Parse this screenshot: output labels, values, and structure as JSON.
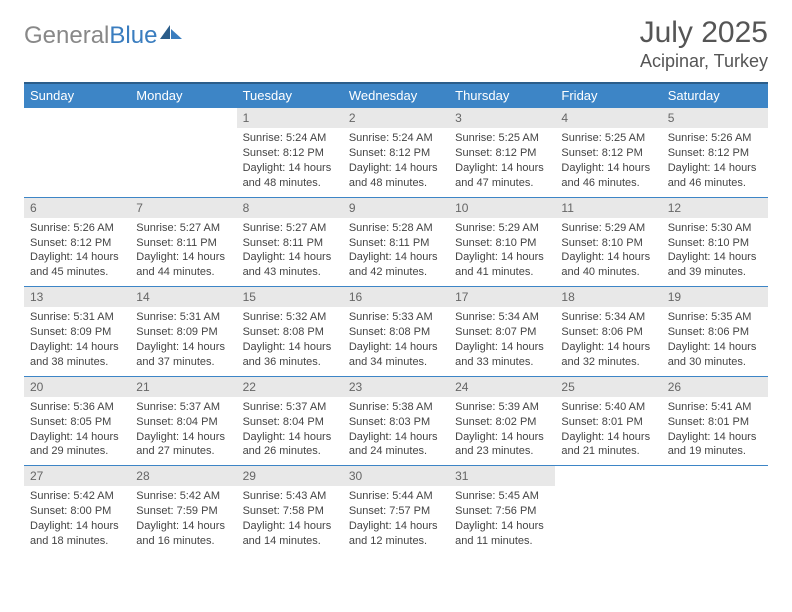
{
  "logo": {
    "part1": "General",
    "part2": "Blue"
  },
  "title": "July 2025",
  "location": "Acipinar, Turkey",
  "header_bg": "#3d85c6",
  "header_text": "#ffffff",
  "daynum_bg": "#e8e8e8",
  "border_color": "#3d85c6",
  "days": [
    "Sunday",
    "Monday",
    "Tuesday",
    "Wednesday",
    "Thursday",
    "Friday",
    "Saturday"
  ],
  "weeks": [
    [
      null,
      null,
      {
        "n": "1",
        "sr": "5:24 AM",
        "ss": "8:12 PM",
        "dl": "14 hours and 48 minutes."
      },
      {
        "n": "2",
        "sr": "5:24 AM",
        "ss": "8:12 PM",
        "dl": "14 hours and 48 minutes."
      },
      {
        "n": "3",
        "sr": "5:25 AM",
        "ss": "8:12 PM",
        "dl": "14 hours and 47 minutes."
      },
      {
        "n": "4",
        "sr": "5:25 AM",
        "ss": "8:12 PM",
        "dl": "14 hours and 46 minutes."
      },
      {
        "n": "5",
        "sr": "5:26 AM",
        "ss": "8:12 PM",
        "dl": "14 hours and 46 minutes."
      }
    ],
    [
      {
        "n": "6",
        "sr": "5:26 AM",
        "ss": "8:12 PM",
        "dl": "14 hours and 45 minutes."
      },
      {
        "n": "7",
        "sr": "5:27 AM",
        "ss": "8:11 PM",
        "dl": "14 hours and 44 minutes."
      },
      {
        "n": "8",
        "sr": "5:27 AM",
        "ss": "8:11 PM",
        "dl": "14 hours and 43 minutes."
      },
      {
        "n": "9",
        "sr": "5:28 AM",
        "ss": "8:11 PM",
        "dl": "14 hours and 42 minutes."
      },
      {
        "n": "10",
        "sr": "5:29 AM",
        "ss": "8:10 PM",
        "dl": "14 hours and 41 minutes."
      },
      {
        "n": "11",
        "sr": "5:29 AM",
        "ss": "8:10 PM",
        "dl": "14 hours and 40 minutes."
      },
      {
        "n": "12",
        "sr": "5:30 AM",
        "ss": "8:10 PM",
        "dl": "14 hours and 39 minutes."
      }
    ],
    [
      {
        "n": "13",
        "sr": "5:31 AM",
        "ss": "8:09 PM",
        "dl": "14 hours and 38 minutes."
      },
      {
        "n": "14",
        "sr": "5:31 AM",
        "ss": "8:09 PM",
        "dl": "14 hours and 37 minutes."
      },
      {
        "n": "15",
        "sr": "5:32 AM",
        "ss": "8:08 PM",
        "dl": "14 hours and 36 minutes."
      },
      {
        "n": "16",
        "sr": "5:33 AM",
        "ss": "8:08 PM",
        "dl": "14 hours and 34 minutes."
      },
      {
        "n": "17",
        "sr": "5:34 AM",
        "ss": "8:07 PM",
        "dl": "14 hours and 33 minutes."
      },
      {
        "n": "18",
        "sr": "5:34 AM",
        "ss": "8:06 PM",
        "dl": "14 hours and 32 minutes."
      },
      {
        "n": "19",
        "sr": "5:35 AM",
        "ss": "8:06 PM",
        "dl": "14 hours and 30 minutes."
      }
    ],
    [
      {
        "n": "20",
        "sr": "5:36 AM",
        "ss": "8:05 PM",
        "dl": "14 hours and 29 minutes."
      },
      {
        "n": "21",
        "sr": "5:37 AM",
        "ss": "8:04 PM",
        "dl": "14 hours and 27 minutes."
      },
      {
        "n": "22",
        "sr": "5:37 AM",
        "ss": "8:04 PM",
        "dl": "14 hours and 26 minutes."
      },
      {
        "n": "23",
        "sr": "5:38 AM",
        "ss": "8:03 PM",
        "dl": "14 hours and 24 minutes."
      },
      {
        "n": "24",
        "sr": "5:39 AM",
        "ss": "8:02 PM",
        "dl": "14 hours and 23 minutes."
      },
      {
        "n": "25",
        "sr": "5:40 AM",
        "ss": "8:01 PM",
        "dl": "14 hours and 21 minutes."
      },
      {
        "n": "26",
        "sr": "5:41 AM",
        "ss": "8:01 PM",
        "dl": "14 hours and 19 minutes."
      }
    ],
    [
      {
        "n": "27",
        "sr": "5:42 AM",
        "ss": "8:00 PM",
        "dl": "14 hours and 18 minutes."
      },
      {
        "n": "28",
        "sr": "5:42 AM",
        "ss": "7:59 PM",
        "dl": "14 hours and 16 minutes."
      },
      {
        "n": "29",
        "sr": "5:43 AM",
        "ss": "7:58 PM",
        "dl": "14 hours and 14 minutes."
      },
      {
        "n": "30",
        "sr": "5:44 AM",
        "ss": "7:57 PM",
        "dl": "14 hours and 12 minutes."
      },
      {
        "n": "31",
        "sr": "5:45 AM",
        "ss": "7:56 PM",
        "dl": "14 hours and 11 minutes."
      },
      null,
      null
    ]
  ],
  "labels": {
    "sunrise": "Sunrise: ",
    "sunset": "Sunset: ",
    "daylight": "Daylight: "
  }
}
